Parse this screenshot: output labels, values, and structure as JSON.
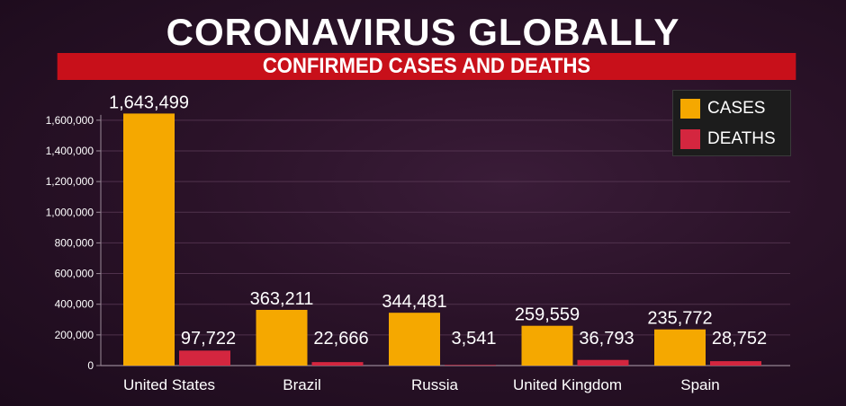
{
  "title": "CORONAVIRUS GLOBALLY",
  "subtitle": "CONFIRMED CASES AND DEATHS",
  "legend": {
    "cases_label": "CASES",
    "deaths_label": "DEATHS"
  },
  "colors": {
    "cases": "#f5a800",
    "deaths": "#d4263f",
    "banner": "#c8101a"
  },
  "chart_data": {
    "type": "bar",
    "categories": [
      "United States",
      "Brazil",
      "Russia",
      "United Kingdom",
      "Spain"
    ],
    "series": [
      {
        "name": "CASES",
        "values": [
          1643499,
          363211,
          344481,
          259559,
          235772
        ]
      },
      {
        "name": "DEATHS",
        "values": [
          97722,
          22666,
          3541,
          36793,
          28752
        ]
      }
    ],
    "value_labels": {
      "CASES": [
        "1,643,499",
        "363,211",
        "344,481",
        "259,559",
        "235,772"
      ],
      "DEATHS": [
        "97,722",
        "22,666",
        "3,541",
        "36,793",
        "28,752"
      ]
    },
    "yticks": [
      0,
      200000,
      400000,
      600000,
      800000,
      1000000,
      1200000,
      1400000,
      1600000
    ],
    "ytick_labels": [
      "0",
      "200,000",
      "400,000",
      "600,000",
      "800,000",
      "1,000,000",
      "1,200,000",
      "1,400,000",
      "1,600,000"
    ],
    "ylim": [
      0,
      1640000
    ],
    "grid": true,
    "legend_position": "top-right"
  }
}
